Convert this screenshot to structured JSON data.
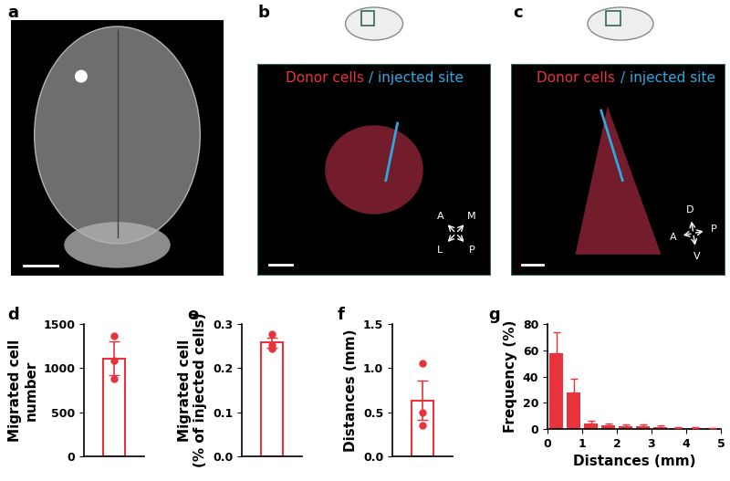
{
  "chart_data": [
    {
      "panel_label": "d",
      "type": "bar",
      "categories": [
        null
      ],
      "values": [
        1112
      ],
      "error": [
        195
      ],
      "points": [
        1370,
        1090,
        875
      ],
      "ylabel": "Migrated cell\nnumber",
      "ylim": [
        0,
        1500
      ],
      "yticks": [
        0,
        500,
        1000,
        1500
      ],
      "color": "#e8323c",
      "tick_labels": "y"
    },
    {
      "panel_label": "e",
      "type": "bar",
      "categories": [
        null
      ],
      "values": [
        0.258
      ],
      "error": [
        0.012
      ],
      "points": [
        0.277,
        0.253,
        0.245
      ],
      "ylabel": "Migrated cell\n(% of injected cells)",
      "ylim": [
        0,
        0.3
      ],
      "yticks": [
        0.0,
        0.1,
        0.2,
        0.3
      ],
      "color": "#e8323c",
      "tick_labels": "y"
    },
    {
      "panel_label": "f",
      "type": "bar",
      "categories": [
        null
      ],
      "values": [
        0.635
      ],
      "error": [
        0.22
      ],
      "points": [
        1.06,
        0.5,
        0.35
      ],
      "ylabel": "Distances (mm)",
      "ylim": [
        0,
        1.5
      ],
      "yticks": [
        0.0,
        0.5,
        1.0,
        1.5
      ],
      "color": "#e8323c",
      "tick_labels": "y"
    },
    {
      "panel_label": "g",
      "type": "histogram",
      "bins": [
        0,
        0.5,
        1,
        1.5,
        2,
        2.5,
        3,
        3.5,
        4,
        4.5,
        5
      ],
      "counts": [
        58,
        28,
        4,
        2.5,
        2,
        2,
        1.5,
        1,
        0.7,
        0.5
      ],
      "error": [
        16,
        10,
        2,
        1.5,
        1.5,
        1.5,
        1,
        0.6,
        0.5,
        0.3
      ],
      "xlabel": "Distances (mm)",
      "ylabel": "Frequency (%)",
      "xlim": [
        0,
        5
      ],
      "xticks": [
        0,
        1,
        2,
        3,
        4,
        5
      ],
      "ylim": [
        0,
        80
      ],
      "yticks": [
        0,
        20,
        40,
        60,
        80
      ],
      "color": "#e8323c"
    }
  ],
  "image_panels": [
    {
      "panel_label": "a"
    },
    {
      "panel_label": "b",
      "legend": [
        {
          "text": "Donor cells",
          "color": "#e8323c"
        },
        {
          "text": "/ injected site",
          "color": "#2ea8e0"
        }
      ],
      "directions": {
        "upper_left": "A",
        "upper_right": "M",
        "lower_left": "L",
        "lower_right": "P"
      }
    },
    {
      "panel_label": "c",
      "legend": [
        {
          "text": "Donor cells",
          "color": "#e8323c"
        },
        {
          "text": "/ injected site",
          "color": "#2ea8e0"
        }
      ],
      "directions": {
        "up": "D",
        "right": "P",
        "left": "A",
        "down": "V"
      }
    }
  ]
}
